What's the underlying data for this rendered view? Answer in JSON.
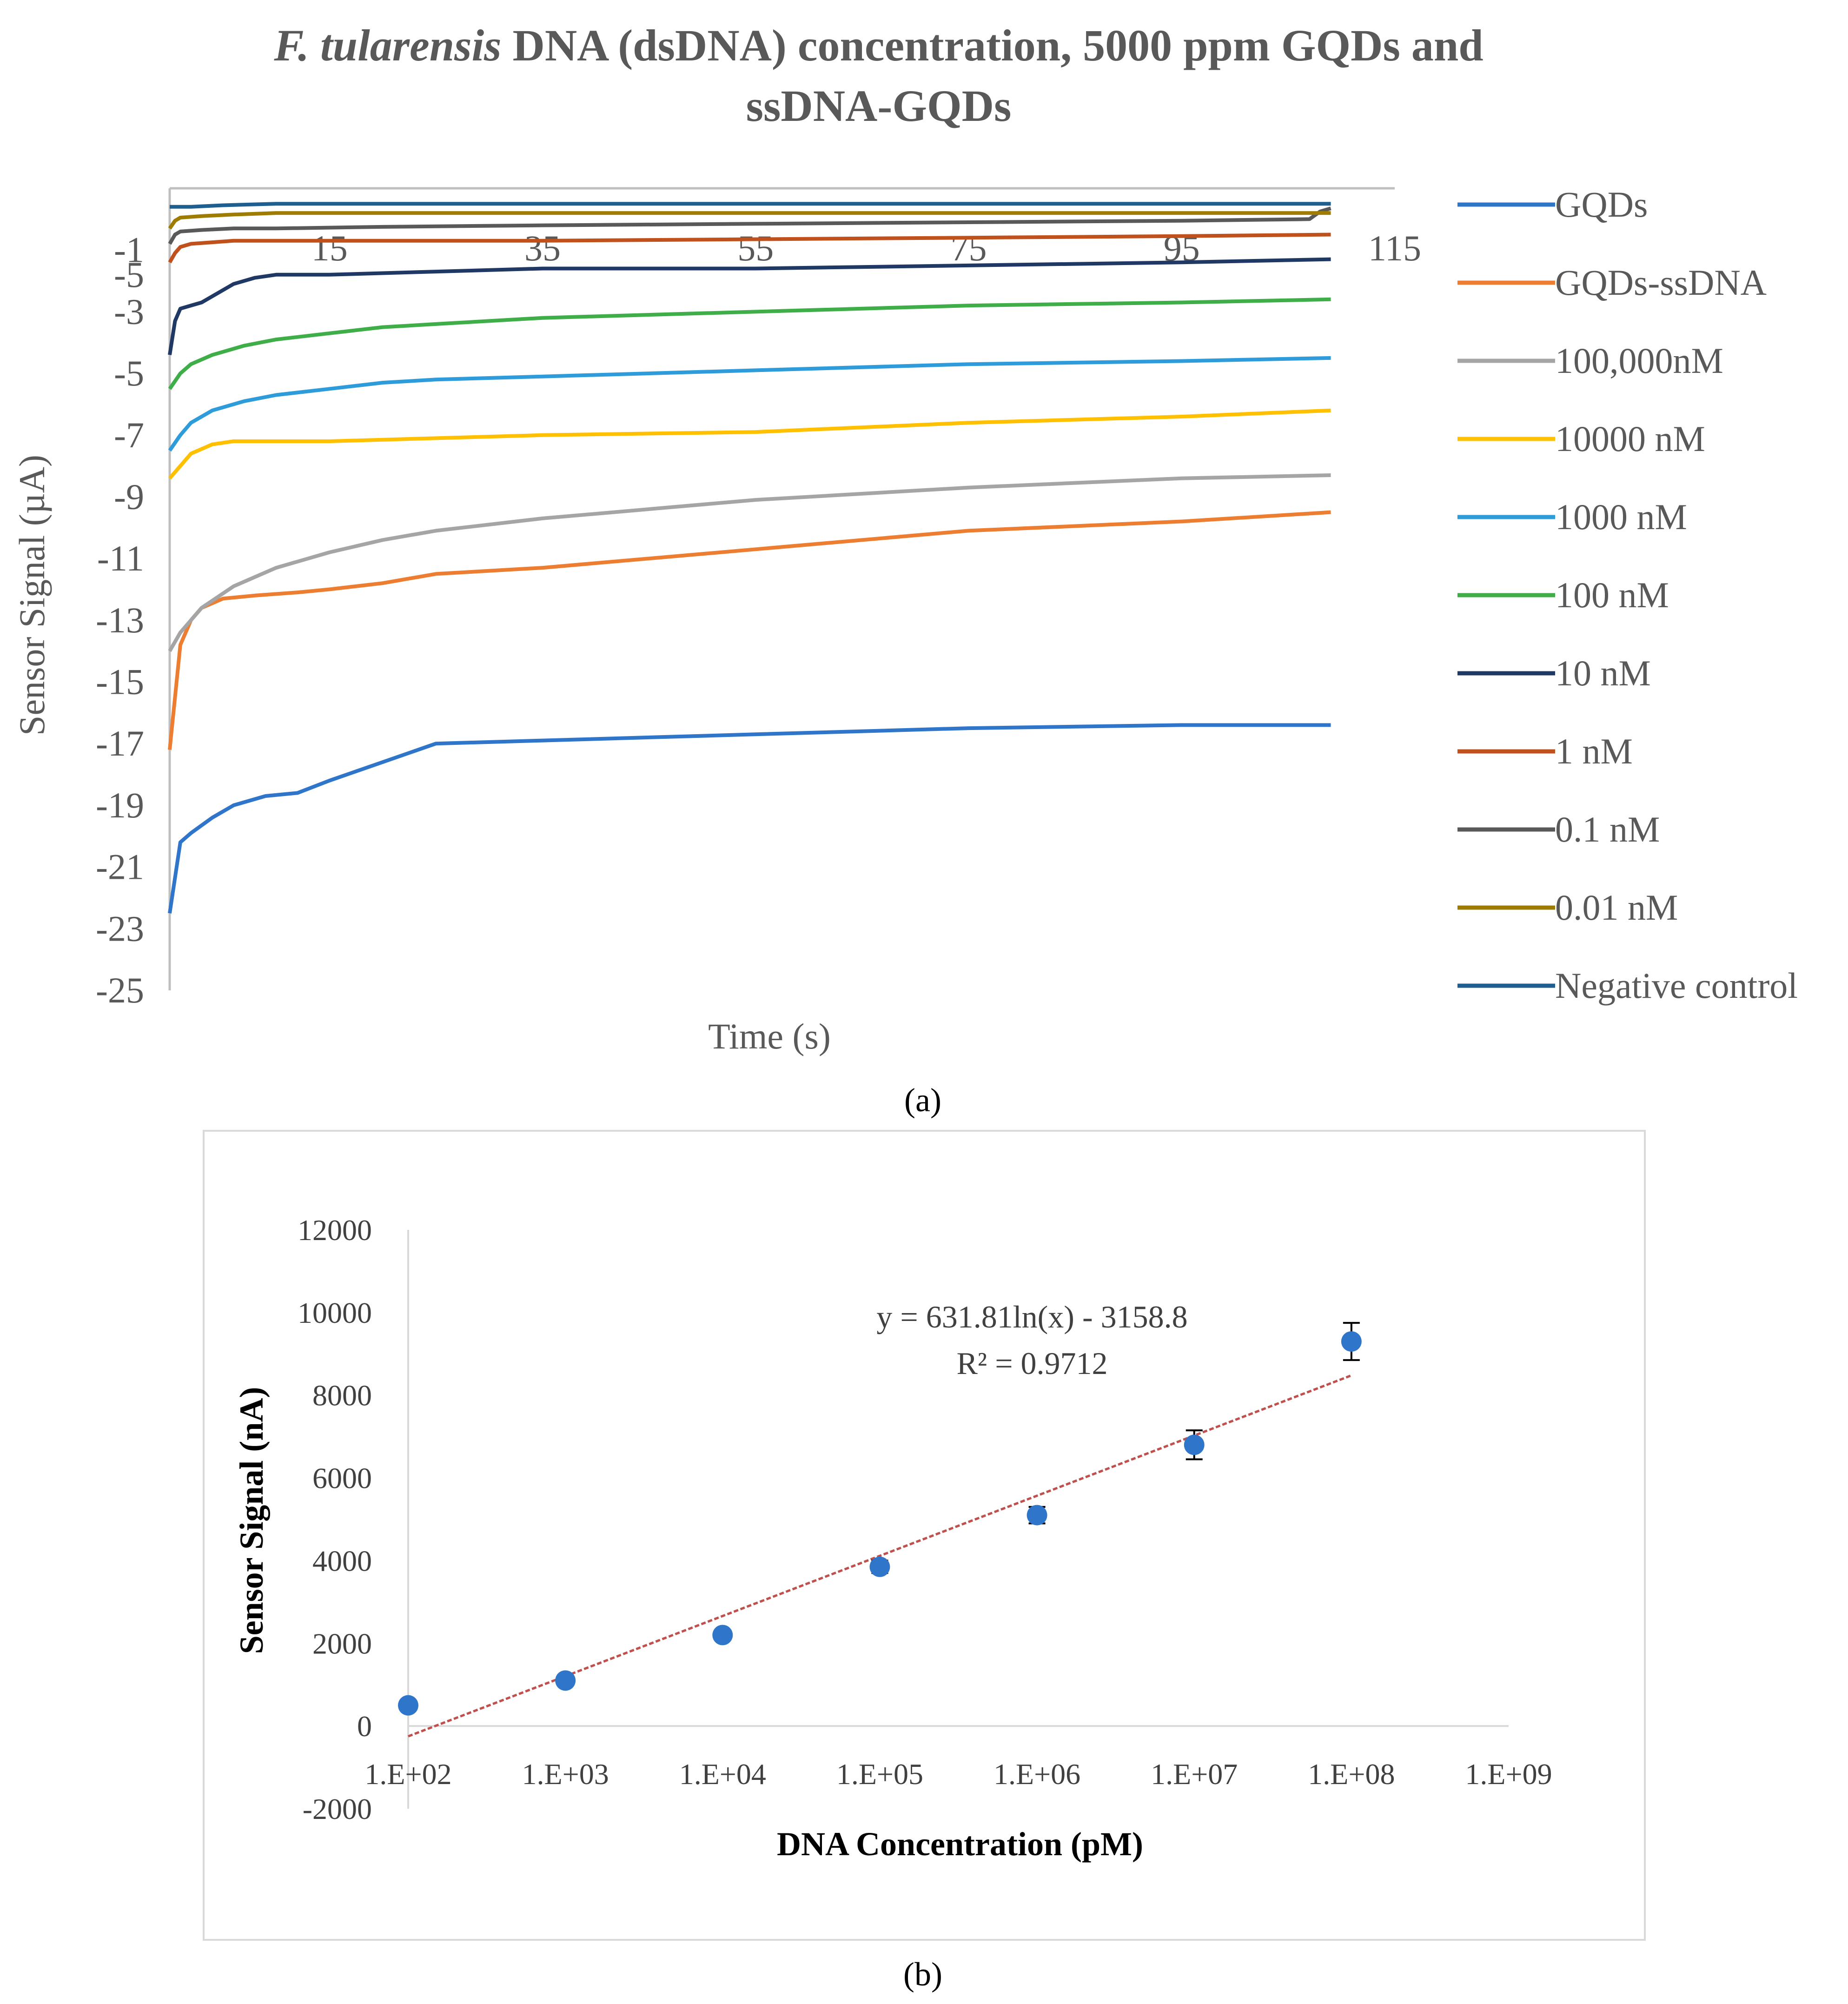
{
  "chart_data": [
    {
      "panel_label": "(a)",
      "type": "line",
      "title_italic": "F. tularensis",
      "title_rest": " DNA (dsDNA) concentration, 5000 ppm GQDs and",
      "title_line2": "ssDNA-GQDs",
      "xlabel": "Time (s)",
      "ylabel": "Sensor Signal (µA)",
      "xlim": [
        0,
        115
      ],
      "ylim": [
        -25,
        1
      ],
      "y_ticks": [
        "-1",
        "-3",
        "-5",
        "-7",
        "-9",
        "-11",
        "-13",
        "-15",
        "-17",
        "-19",
        "-21",
        "-23",
        "-25"
      ],
      "y_tick_values": [
        -1,
        -3,
        -5,
        -7,
        -9,
        -11,
        -13,
        -15,
        -17,
        -19,
        -21,
        -23,
        -25
      ],
      "y_extra_tick": {
        "label": "-5",
        "value": -1.8
      },
      "x_ticks": [
        "15",
        "35",
        "55",
        "75",
        "95",
        "115"
      ],
      "x_tick_values": [
        15,
        35,
        55,
        75,
        95,
        115
      ],
      "legend_position": "right",
      "series": [
        {
          "name": "GQDs",
          "color": "#2F75C9",
          "x": [
            0,
            1,
            2,
            4,
            6,
            9,
            12,
            15,
            20,
            25,
            35,
            55,
            75,
            95,
            109
          ],
          "y": [
            -22.5,
            -20.2,
            -19.9,
            -19.4,
            -19.0,
            -18.7,
            -18.6,
            -18.2,
            -17.6,
            -17.0,
            -16.9,
            -16.7,
            -16.5,
            -16.4,
            -16.4
          ]
        },
        {
          "name": "GQDs-ssDNA",
          "color": "#ED7D31",
          "x": [
            0,
            1,
            2,
            3,
            5,
            8,
            12,
            15,
            20,
            25,
            35,
            55,
            75,
            95,
            109
          ],
          "y": [
            -17.2,
            -13.8,
            -13.0,
            -12.6,
            -12.3,
            -12.2,
            -12.1,
            -12.0,
            -11.8,
            -11.5,
            -11.3,
            -10.7,
            -10.1,
            -9.8,
            -9.5
          ]
        },
        {
          "name": "100,000nM",
          "color": "#A5A5A5",
          "x": [
            0,
            1,
            3,
            6,
            10,
            15,
            20,
            25,
            35,
            55,
            75,
            95,
            109
          ],
          "y": [
            -14.0,
            -13.4,
            -12.6,
            -11.9,
            -11.3,
            -10.8,
            -10.4,
            -10.1,
            -9.7,
            -9.1,
            -8.7,
            -8.4,
            -8.3
          ]
        },
        {
          "name": "10000 nM",
          "color": "#FFC000",
          "x": [
            0,
            1,
            2,
            4,
            6,
            10,
            15,
            25,
            35,
            55,
            75,
            95,
            109
          ],
          "y": [
            -8.4,
            -8.0,
            -7.6,
            -7.3,
            -7.2,
            -7.2,
            -7.2,
            -7.1,
            -7.0,
            -6.9,
            -6.6,
            -6.4,
            -6.2
          ]
        },
        {
          "name": "1000 nM",
          "color": "#2E9BDA",
          "x": [
            0,
            1,
            2,
            4,
            7,
            10,
            15,
            20,
            25,
            35,
            55,
            75,
            95,
            109
          ],
          "y": [
            -7.5,
            -7.0,
            -6.6,
            -6.2,
            -5.9,
            -5.7,
            -5.5,
            -5.3,
            -5.2,
            -5.1,
            -4.9,
            -4.7,
            -4.6,
            -4.5
          ]
        },
        {
          "name": "100 nM",
          "color": "#3FAE49",
          "x": [
            0,
            1,
            2,
            4,
            7,
            10,
            15,
            20,
            25,
            35,
            55,
            75,
            95,
            109
          ],
          "y": [
            -5.5,
            -5.0,
            -4.7,
            -4.4,
            -4.1,
            -3.9,
            -3.7,
            -3.5,
            -3.4,
            -3.2,
            -3.0,
            -2.8,
            -2.7,
            -2.6
          ]
        },
        {
          "name": "10 nM",
          "color": "#203864",
          "x": [
            0,
            0.5,
            1,
            2,
            3,
            4,
            6,
            8,
            10,
            15,
            25,
            35,
            55,
            75,
            95,
            109
          ],
          "y": [
            -4.4,
            -3.3,
            -2.9,
            -2.8,
            -2.7,
            -2.5,
            -2.1,
            -1.9,
            -1.8,
            -1.8,
            -1.7,
            -1.6,
            -1.6,
            -1.5,
            -1.4,
            -1.3
          ]
        },
        {
          "name": "1 nM",
          "color": "#C0501C",
          "x": [
            0,
            0.5,
            1,
            2,
            4,
            6,
            10,
            15,
            25,
            35,
            55,
            75,
            95,
            109
          ],
          "y": [
            -1.4,
            -1.1,
            -0.9,
            -0.8,
            -0.75,
            -0.7,
            -0.7,
            -0.7,
            -0.7,
            -0.7,
            -0.65,
            -0.6,
            -0.55,
            -0.5
          ]
        },
        {
          "name": "0.1 nM",
          "color": "#595959",
          "x": [
            0,
            0.5,
            1,
            3,
            6,
            10,
            20,
            35,
            55,
            75,
            95,
            107,
            108,
            109
          ],
          "y": [
            -0.8,
            -0.5,
            -0.4,
            -0.35,
            -0.3,
            -0.3,
            -0.25,
            -0.2,
            -0.15,
            -0.1,
            -0.05,
            0.0,
            0.25,
            0.35
          ]
        },
        {
          "name": "0.01 nM",
          "color": "#9E7C00",
          "x": [
            0,
            0.5,
            1,
            3,
            6,
            10,
            15,
            35,
            55,
            75,
            95,
            109
          ],
          "y": [
            -0.3,
            -0.05,
            0.05,
            0.1,
            0.15,
            0.2,
            0.2,
            0.2,
            0.2,
            0.2,
            0.2,
            0.2
          ]
        },
        {
          "name": "Negative control",
          "color": "#1F5F8F",
          "x": [
            0,
            2,
            5,
            10,
            20,
            35,
            55,
            75,
            95,
            109
          ],
          "y": [
            0.4,
            0.4,
            0.45,
            0.5,
            0.5,
            0.5,
            0.5,
            0.5,
            0.5,
            0.5
          ]
        }
      ]
    },
    {
      "panel_label": "(b)",
      "type": "scatter",
      "xlabel": "DNA Concentration (pM)",
      "ylabel": "Sensor  Signal (nA)",
      "x_scale": "log",
      "xlim": [
        100,
        1000000000
      ],
      "ylim": [
        -2000,
        12000
      ],
      "x_ticks": [
        "1.E+02",
        "1.E+03",
        "1.E+04",
        "1.E+05",
        "1.E+06",
        "1.E+07",
        "1.E+08",
        "1.E+09"
      ],
      "y_ticks": [
        "12000",
        "10000",
        "8000",
        "6000",
        "4000",
        "2000",
        "0",
        "-2000"
      ],
      "y_tick_values": [
        12000,
        10000,
        8000,
        6000,
        4000,
        2000,
        0,
        -2000
      ],
      "points": [
        {
          "x": 100,
          "y": 500,
          "err": 0
        },
        {
          "x": 1000,
          "y": 1100,
          "err": 100
        },
        {
          "x": 10000,
          "y": 2200,
          "err": 100
        },
        {
          "x": 100000,
          "y": 3850,
          "err": 150
        },
        {
          "x": 1000000,
          "y": 5100,
          "err": 200
        },
        {
          "x": 10000000,
          "y": 6800,
          "err": 350
        },
        {
          "x": 100000000,
          "y": 9300,
          "err": 450
        }
      ],
      "point_color": "#2F75C9",
      "trendline": {
        "slope": 631.81,
        "intercept": -3158.8,
        "color": "#C0504D",
        "equation": "y = 631.81ln(x) - 3158.8",
        "r2": "R² = 0.9712"
      }
    }
  ]
}
